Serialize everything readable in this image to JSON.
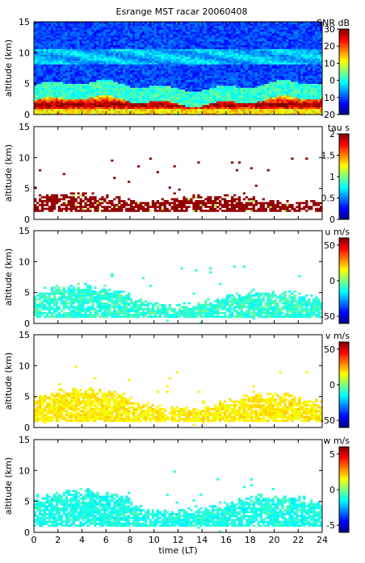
{
  "title": "Esrange MST racar 20060408",
  "chart_data": [
    {
      "type": "heatmap",
      "name": "snr",
      "ylabel": "altitude (km)",
      "xlim": [
        0,
        24
      ],
      "ylim": [
        0,
        15
      ],
      "yticks": [
        "0",
        "5",
        "10",
        "15"
      ],
      "colorbar": {
        "label": "SNR dB",
        "min": -20,
        "max": 30,
        "ticks": [
          "30",
          "20",
          "10",
          "0",
          "-10",
          "-20"
        ]
      }
    },
    {
      "type": "heatmap",
      "name": "tau",
      "ylabel": "altitude (km)",
      "xlim": [
        0,
        24
      ],
      "ylim": [
        0,
        15
      ],
      "yticks": [
        "0",
        "5",
        "10",
        "15"
      ],
      "colorbar": {
        "label": "tau s",
        "min": 0,
        "max": 2,
        "ticks": [
          "2",
          "1.5",
          "1",
          "0.5",
          "0"
        ]
      }
    },
    {
      "type": "heatmap",
      "name": "u",
      "ylabel": "altitude (km)",
      "xlim": [
        0,
        24
      ],
      "ylim": [
        0,
        15
      ],
      "yticks": [
        "0",
        "5",
        "10",
        "15"
      ],
      "colorbar": {
        "label": "u m/s",
        "min": -60,
        "max": 60,
        "ticks": [
          "50",
          "0",
          "-50"
        ]
      }
    },
    {
      "type": "heatmap",
      "name": "v",
      "ylabel": "altitude (km)",
      "xlim": [
        0,
        24
      ],
      "ylim": [
        0,
        15
      ],
      "yticks": [
        "0",
        "5",
        "10",
        "15"
      ],
      "colorbar": {
        "label": "v m/s",
        "min": -60,
        "max": 60,
        "ticks": [
          "50",
          "0",
          "-50"
        ]
      }
    },
    {
      "type": "heatmap",
      "name": "w",
      "ylabel": "altitude (km)",
      "xlim": [
        0,
        24
      ],
      "ylim": [
        0,
        15
      ],
      "yticks": [
        "0",
        "5",
        "10",
        "15"
      ],
      "xlabel": "time (LT)",
      "xticks": [
        "0",
        "2",
        "4",
        "6",
        "8",
        "10",
        "12",
        "14",
        "16",
        "18",
        "20",
        "22",
        "24"
      ],
      "colorbar": {
        "label": "w m/s",
        "min": -6,
        "max": 6,
        "ticks": [
          "5",
          "0",
          "-5"
        ]
      }
    }
  ]
}
